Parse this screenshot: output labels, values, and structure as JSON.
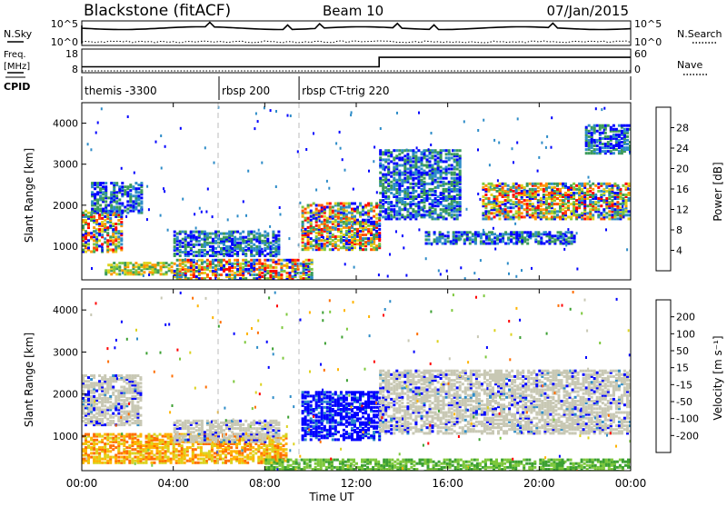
{
  "header": {
    "station": "Blackstone (fitACF)",
    "beam": "Beam 10",
    "date": "07/Jan/2015"
  },
  "top_panels": {
    "nsky": {
      "label": "N.Sky",
      "tick_top": "10^5",
      "tick_bottom": "10^0",
      "right_label": "N.Search",
      "right_tick_top": "10^5",
      "right_tick_bottom": "10^0"
    },
    "freq": {
      "label_line1": "Freq.",
      "label_line2": "[MHz]",
      "tick_top": "18",
      "tick_bottom": "8",
      "right_label": "Nave",
      "right_tick_top": "60",
      "right_tick_bottom": "0"
    },
    "cpid": {
      "label": "CPID",
      "segments": [
        {
          "label": "themis -3300",
          "start_h": 0.0
        },
        {
          "label": "rbsp 200",
          "start_h": 6.0
        },
        {
          "label": "rbsp CT-trig 220",
          "start_h": 9.5
        }
      ]
    }
  },
  "power_colorbar": {
    "label": "Power [dB]",
    "ticks": [
      "28",
      "24",
      "20",
      "16",
      "12",
      "8",
      "4"
    ],
    "colors": [
      "#0000ff",
      "#2d8cc8",
      "#3c9b5a",
      "#7dc83c",
      "#dcd21e",
      "#ff9600",
      "#ff5000",
      "#ff0000"
    ]
  },
  "velocity_colorbar": {
    "label": "Velocity [m s⁻¹]",
    "ticks": [
      "200",
      "100",
      "50",
      "15",
      "-15",
      "-50",
      "-100",
      "-200"
    ],
    "colors": [
      "#ff0000",
      "#ff6e00",
      "#ffb400",
      "#dcd21e",
      "#c8c8b4",
      "#7dc83c",
      "#3ca032",
      "#2d8cc8",
      "#0000ff"
    ]
  },
  "axes": {
    "y_label": "Slant Range [km]",
    "y_ticks": [
      "4000",
      "3000",
      "2000",
      "1000"
    ],
    "x_label": "Time UT",
    "x_ticks": [
      "00:00",
      "04:00",
      "08:00",
      "12:00",
      "16:00",
      "20:00",
      "00:00"
    ]
  },
  "chart_data": {
    "type": "heatmap",
    "title": "Blackstone (fitACF)",
    "xlabel": "Time UT",
    "ylabel": "Slant Range [km]",
    "xlim_hours": [
      0,
      24
    ],
    "ylim_km": [
      180,
      4500
    ],
    "freq_mhz": [
      {
        "from_h": 0,
        "to_h": 13,
        "value": 10.5
      },
      {
        "from_h": 13,
        "to_h": 24,
        "value": 14.5
      }
    ],
    "nave": [
      {
        "from_h": 0,
        "to_h": 24,
        "value": 0
      }
    ],
    "power_echo_regions": [
      {
        "t0": 0.0,
        "t1": 1.7,
        "r0": 900,
        "r1": 1900,
        "level": "high"
      },
      {
        "t0": 0.4,
        "t1": 2.6,
        "r0": 1850,
        "r1": 2600,
        "level": "low"
      },
      {
        "t0": 1.0,
        "t1": 4.0,
        "r0": 350,
        "r1": 650,
        "level": "mid"
      },
      {
        "t0": 4.0,
        "t1": 8.6,
        "r0": 800,
        "r1": 1400,
        "level": "low"
      },
      {
        "t0": 4.0,
        "t1": 10.0,
        "r0": 200,
        "r1": 700,
        "level": "high"
      },
      {
        "t0": 9.6,
        "t1": 13.0,
        "r0": 950,
        "r1": 2100,
        "level": "high"
      },
      {
        "t0": 13.0,
        "t1": 16.5,
        "r0": 1700,
        "r1": 3400,
        "level": "low"
      },
      {
        "t0": 15.0,
        "t1": 21.5,
        "r0": 1100,
        "r1": 1400,
        "level": "low"
      },
      {
        "t0": 17.5,
        "t1": 24.0,
        "r0": 1700,
        "r1": 2600,
        "level": "high"
      },
      {
        "t0": 22.0,
        "t1": 24.0,
        "r0": 3300,
        "r1": 4000,
        "level": "low"
      }
    ],
    "velocity_echo_regions": [
      {
        "t0": 0.0,
        "t1": 2.6,
        "r0": 1300,
        "r1": 2500,
        "sign": "ground"
      },
      {
        "t0": 0.0,
        "t1": 9.0,
        "r0": 400,
        "r1": 1100,
        "sign": "negative"
      },
      {
        "t0": 4.0,
        "t1": 8.6,
        "r0": 900,
        "r1": 1400,
        "sign": "ground"
      },
      {
        "t0": 8.0,
        "t1": 24.0,
        "r0": 200,
        "r1": 500,
        "sign": "small"
      },
      {
        "t0": 9.6,
        "t1": 13.0,
        "r0": 950,
        "r1": 2100,
        "sign": "positive"
      },
      {
        "t0": 13.0,
        "t1": 24.0,
        "r0": 1100,
        "r1": 2600,
        "sign": "ground"
      }
    ]
  }
}
